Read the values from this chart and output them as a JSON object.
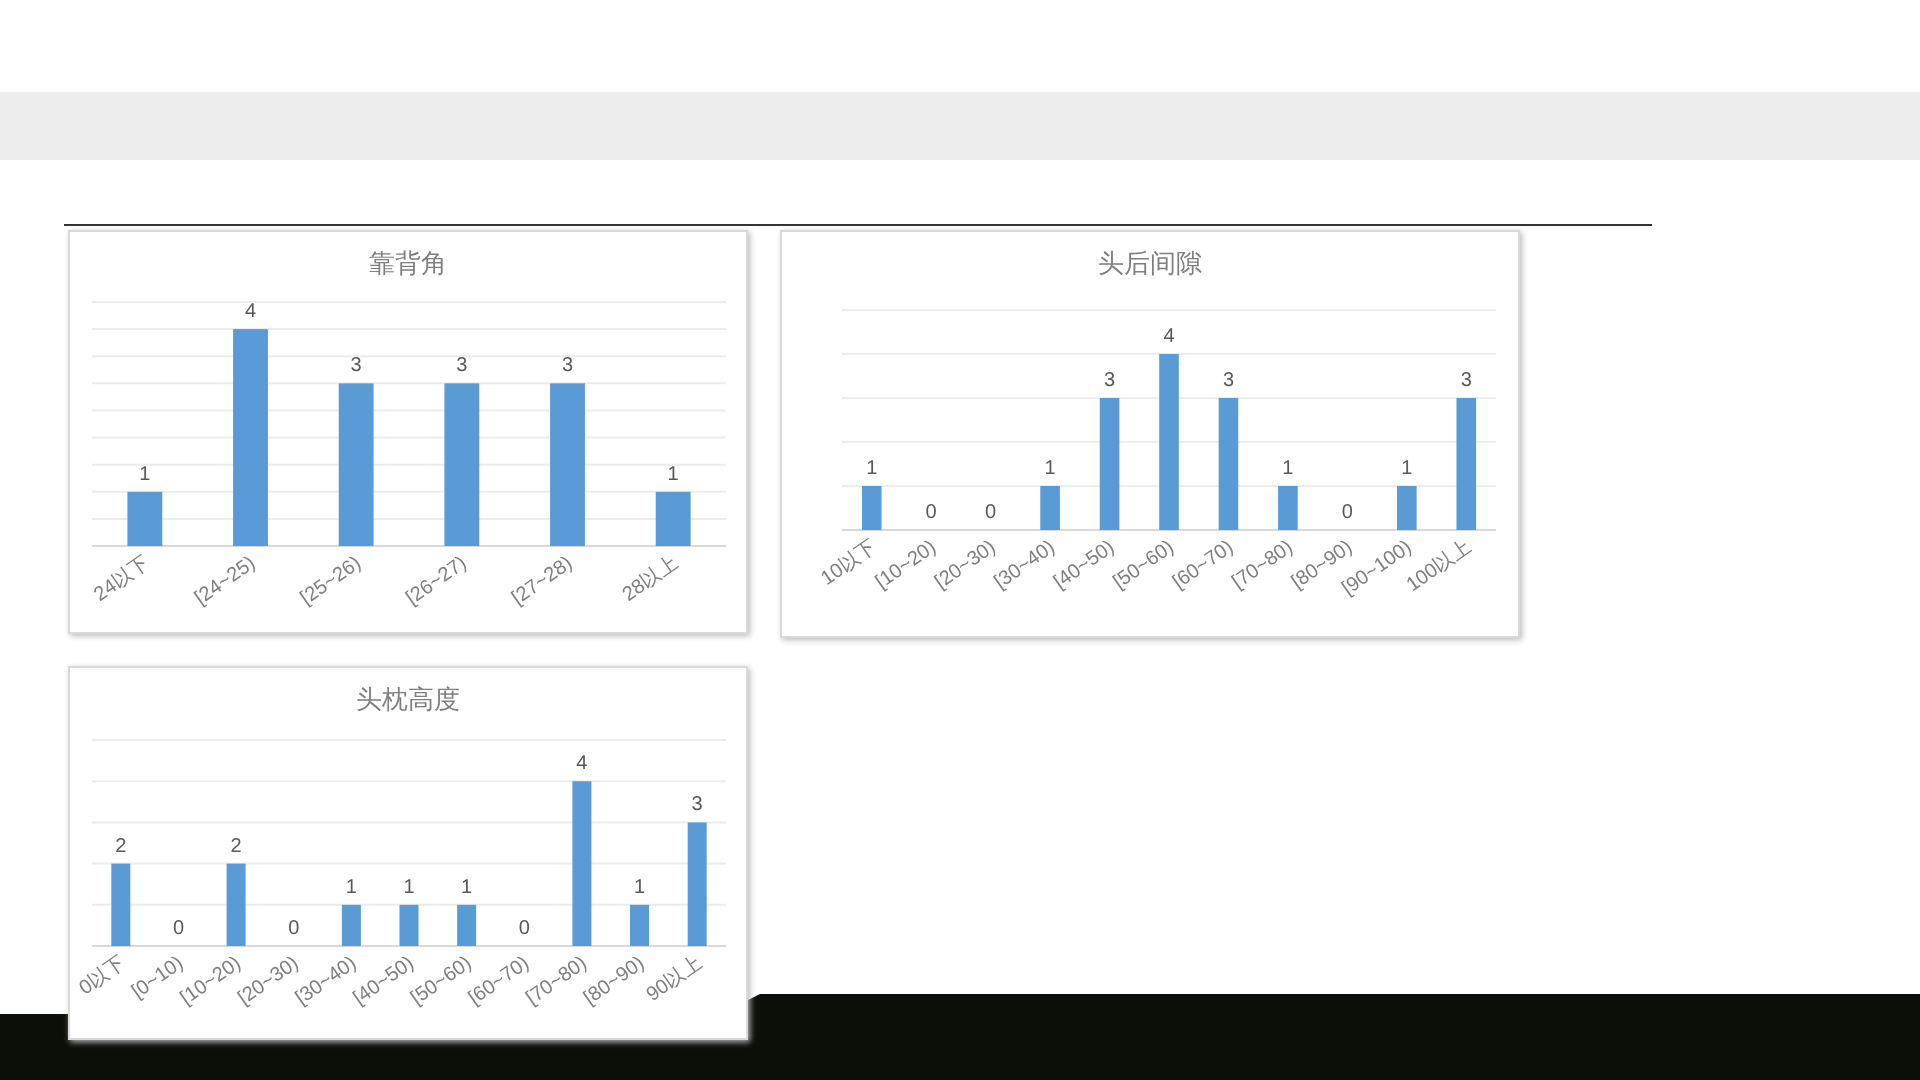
{
  "chart_data": [
    {
      "type": "bar",
      "title": "靠背角",
      "categories": [
        "24以下",
        "[24~25)",
        "[25~26)",
        "[26~27)",
        "[27~28)",
        "28以上"
      ],
      "values": [
        1,
        4,
        3,
        3,
        3,
        1
      ],
      "color": "#5b9bd5",
      "data_labels": true,
      "grid": "y",
      "tick_labels": "x",
      "ylim": [
        0,
        4.5
      ],
      "yticks": [
        {
          "value": 0,
          "label": null
        },
        {
          "value": 0.5,
          "label": null
        },
        {
          "value": 1,
          "label": null
        },
        {
          "value": 1.5,
          "label": null
        },
        {
          "value": 2,
          "label": null
        },
        {
          "value": 2.5,
          "label": null
        },
        {
          "value": 3,
          "label": null
        },
        {
          "value": 3.5,
          "label": null
        },
        {
          "value": 4,
          "label": null
        },
        {
          "value": 4.5,
          "label": null
        }
      ]
    },
    {
      "type": "bar",
      "title": "头后间隙",
      "categories": [
        "10以下",
        "[10~20)",
        "[20~30)",
        "[30~40)",
        "[40~50)",
        "[50~60)",
        "[60~70)",
        "[70~80)",
        "[80~90)",
        "[90~100)",
        "100以上"
      ],
      "values": [
        1,
        0,
        0,
        1,
        3,
        4,
        3,
        1,
        0,
        1,
        3
      ],
      "color": "#5b9bd5",
      "data_labels": true,
      "grid": "y",
      "tick_labels": "x",
      "ylim": [
        0,
        5
      ],
      "yticks": [
        {
          "value": 0,
          "label": null
        },
        {
          "value": 1,
          "label": null
        },
        {
          "value": 2,
          "label": null
        },
        {
          "value": 3,
          "label": null
        },
        {
          "value": 4,
          "label": null
        },
        {
          "value": 5,
          "label": null
        }
      ]
    },
    {
      "type": "bar",
      "title": "头枕高度",
      "categories": [
        "0以下",
        "[0~10)",
        "[10~20)",
        "[20~30)",
        "[30~40)",
        "[40~50)",
        "[50~60)",
        "[60~70)",
        "[70~80)",
        "[80~90)",
        "90以上"
      ],
      "values": [
        2,
        0,
        2,
        0,
        1,
        1,
        1,
        0,
        4,
        1,
        3
      ],
      "color": "#5b9bd5",
      "data_labels": true,
      "grid": "y",
      "tick_labels": "x",
      "ylim": [
        0,
        5
      ],
      "yticks": [
        {
          "value": 0,
          "label": null
        },
        {
          "value": 1,
          "label": null
        },
        {
          "value": 2,
          "label": null
        },
        {
          "value": 3,
          "label": null
        },
        {
          "value": 4,
          "label": null
        },
        {
          "value": 5,
          "label": null
        }
      ]
    }
  ]
}
